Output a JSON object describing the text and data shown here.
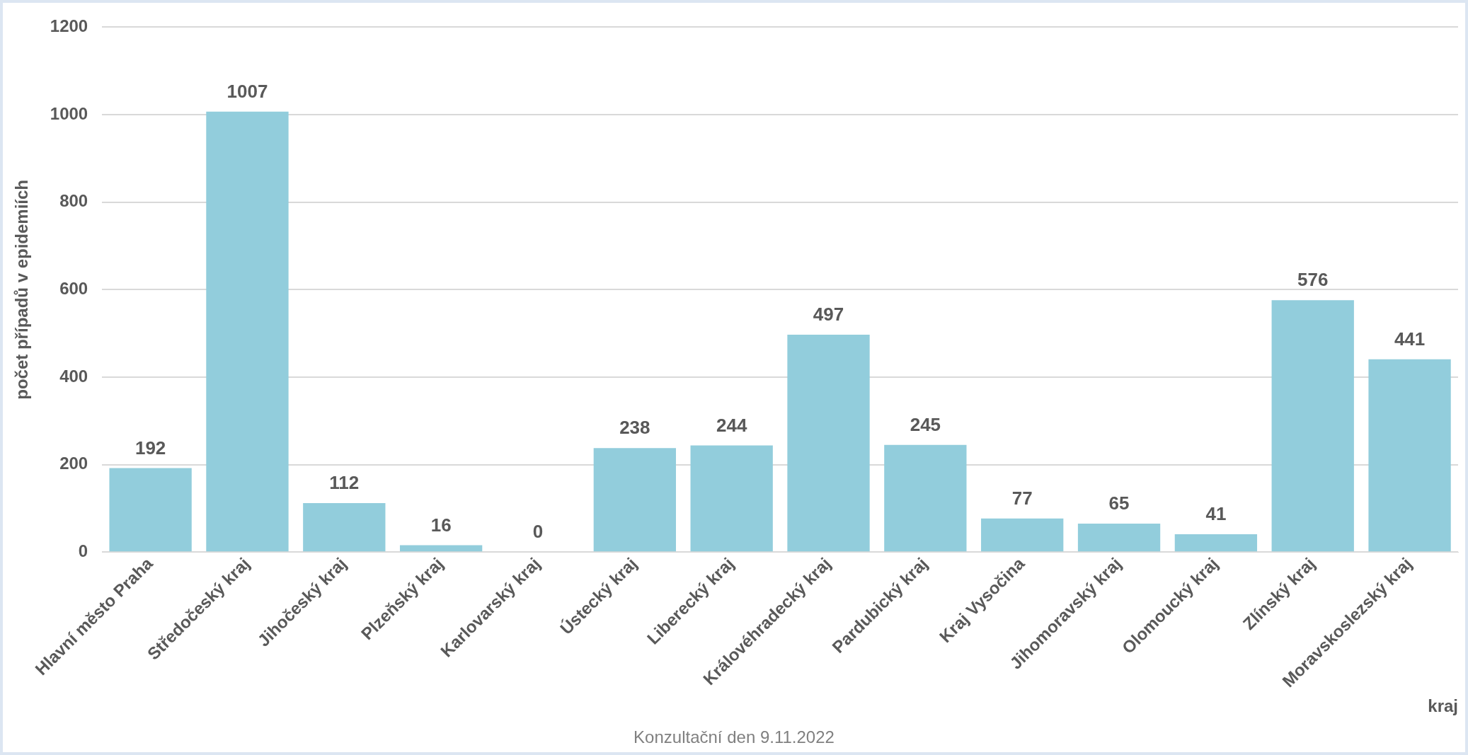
{
  "chart_data": {
    "type": "bar",
    "xlabel": "kraj",
    "ylabel": "počet případů v epidemiích",
    "categories": [
      "Hlavní město Praha",
      "Středočeský kraj",
      "Jihočeský kraj",
      "Plzeňský kraj",
      "Karlovarský kraj",
      "Ústecký kraj",
      "Liberecký kraj",
      "Královéhradecký kraj",
      "Pardubický kraj",
      "Kraj Vysočina",
      "Jihomoravský kraj",
      "Olomoucký kraj",
      "Zlínský kraj",
      "Moravskoslezský kraj"
    ],
    "values": [
      192,
      1007,
      112,
      16,
      0,
      238,
      244,
      497,
      245,
      77,
      65,
      41,
      576,
      441
    ],
    "color": "#92cddc",
    "ylim": [
      0,
      1200
    ],
    "yticks": [
      0,
      200,
      400,
      600,
      800,
      1000,
      1200
    ],
    "grid": "y",
    "legend": false,
    "data_labels": true,
    "annotations": [
      "Konzultační den 9.11.2022"
    ]
  }
}
